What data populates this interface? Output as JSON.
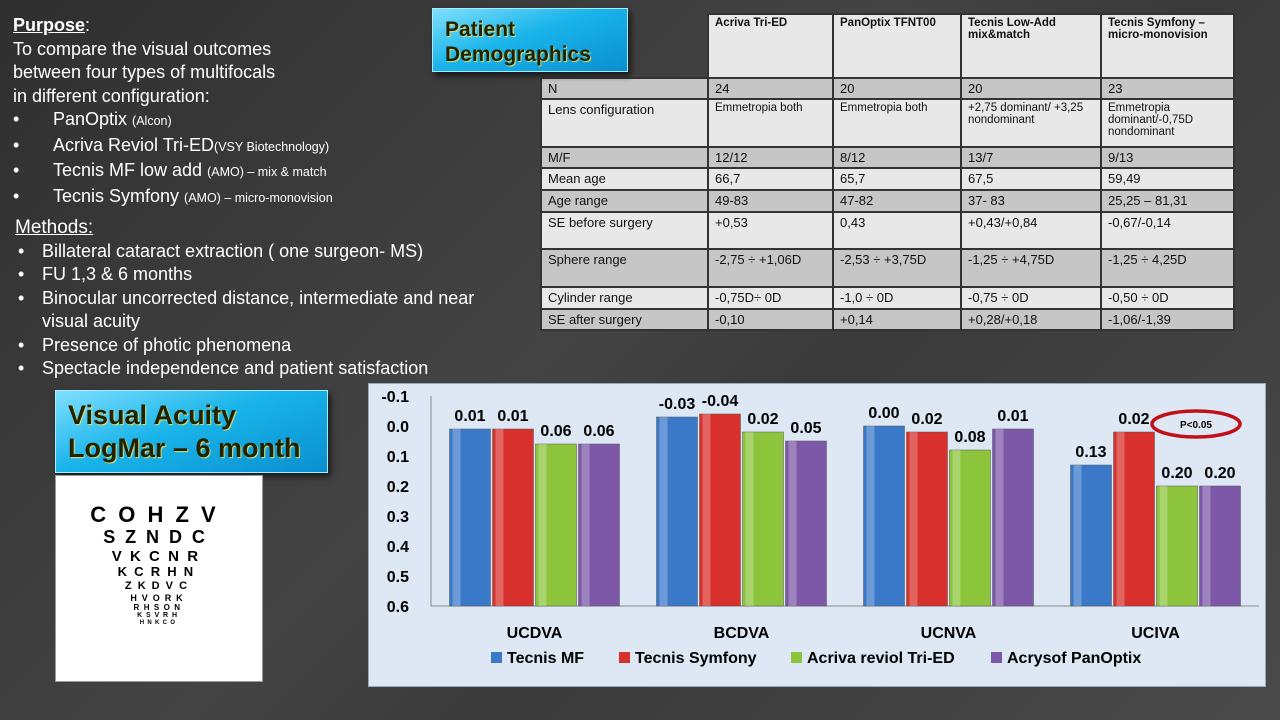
{
  "purpose": {
    "heading": "Purpose",
    "colon": ":",
    "lines": [
      "To compare the visual outcomes",
      "between four types of multifocals",
      "in different configuration:"
    ],
    "lenses": [
      {
        "name": "PanOptix ",
        "maker": "(Alcon)"
      },
      {
        "name": "Acriva Reviol Tri-ED",
        "maker": "(VSY Biotechnology)"
      },
      {
        "name": "Tecnis MF low add ",
        "maker": "(AMO) – mix & match"
      },
      {
        "name": "Tecnis Symfony ",
        "maker": "(AMO) – micro-monovision"
      }
    ]
  },
  "methods": {
    "heading": "Methods:",
    "items": [
      "Billateral cataract extraction ( one surgeon- MS)",
      "FU 1,3 & 6 months",
      "Binocular uncorrected distance, intermediate and near visual acuity",
      "Presence of photic phenomena",
      "Spectacle independence and patient satisfaction"
    ]
  },
  "demographics": {
    "title_line1": "Patient",
    "title_line2": "Demographics",
    "columns": [
      "Acriva Tri-ED",
      "PanOptix TFNT00",
      "Tecnis Low-Add mix&match",
      "Tecnis Symfony – micro-monovision"
    ],
    "rows": [
      {
        "label": "N",
        "values": [
          "24",
          "20",
          "20",
          "23"
        ]
      },
      {
        "label": "Lens configuration",
        "values": [
          "Emmetropia both",
          "Emmetropia both",
          "+2,75 dominant/ +3,25 nondominant",
          "Emmetropia dominant/-0,75D nondominant"
        ]
      },
      {
        "label": "M/F",
        "values": [
          "12/12",
          "8/12",
          "13/7",
          "9/13"
        ]
      },
      {
        "label": "Mean age",
        "values": [
          "66,7",
          "65,7",
          "67,5",
          "59,49"
        ]
      },
      {
        "label": "Age range",
        "values": [
          "49-83",
          "47-82",
          "37- 83",
          "25,25 – 81,31"
        ]
      },
      {
        "label": "SE before surgery",
        "values": [
          "+0,53",
          "0,43",
          "+0,43/+0,84",
          "-0,67/-0,14"
        ]
      },
      {
        "label": "Sphere range",
        "values": [
          "-2,75 ÷ +1,06D",
          "-2,53 ÷ +3,75D",
          "-1,25 ÷ +4,75D",
          "-1,25 ÷ 4,25D"
        ]
      },
      {
        "label": "Cylinder range",
        "values": [
          "-0,75D÷ 0D",
          "-1,0 ÷ 0D",
          "-0,75 ÷ 0D",
          "-0,50 ÷ 0D"
        ]
      },
      {
        "label": "SE after surgery",
        "values": [
          "-0,10",
          "+0,14",
          "+0,28/+0,18",
          "-1,06/-1,39"
        ]
      }
    ]
  },
  "va_title": {
    "line1": "Visual Acuity",
    "line2": "LogMar – 6 month"
  },
  "eye_chart": {
    "rows": [
      "COHZV",
      "SZNDC",
      "VKCNR",
      "KCRHN",
      "ZKDVC",
      "HVORK",
      "RHSON",
      "KSVRH",
      "HNKCO"
    ]
  },
  "chart_data": {
    "type": "bar",
    "title": "",
    "xlabel": "",
    "ylabel": "",
    "ylim": [
      -0.1,
      0.6
    ],
    "y_inverted": true,
    "yticks": [
      "-0.1",
      "0.0",
      "0.1",
      "0.2",
      "0.3",
      "0.4",
      "0.5",
      "0.6"
    ],
    "categories": [
      "UCDVA",
      "BCDVA",
      "UCNVA",
      "UCIVA"
    ],
    "series": [
      {
        "name": "Tecnis MF",
        "color": "#3a78c8",
        "values": [
          0.01,
          -0.03,
          0.0,
          0.13
        ],
        "labels": [
          "0.01",
          "-0.03",
          "0.00",
          "0.13"
        ]
      },
      {
        "name": "Tecnis Symfony",
        "color": "#d8302c",
        "values": [
          0.01,
          -0.04,
          0.02,
          0.02
        ],
        "labels": [
          "0.01",
          "-0.04",
          "0.02",
          "0.02"
        ]
      },
      {
        "name": "Acriva reviol Tri-ED",
        "color": "#8cc43c",
        "values": [
          0.06,
          0.02,
          0.08,
          0.2
        ],
        "labels": [
          "0.06",
          "0.02",
          "0.08",
          "0.20"
        ]
      },
      {
        "name": "Acrysof PanOptix",
        "color": "#7d58a8",
        "values": [
          0.06,
          0.05,
          0.01,
          0.2
        ],
        "labels": [
          "0.06",
          "0.05",
          "0.01",
          "0.20"
        ]
      }
    ],
    "annotation": "P<0.05",
    "legend": "bottom"
  }
}
